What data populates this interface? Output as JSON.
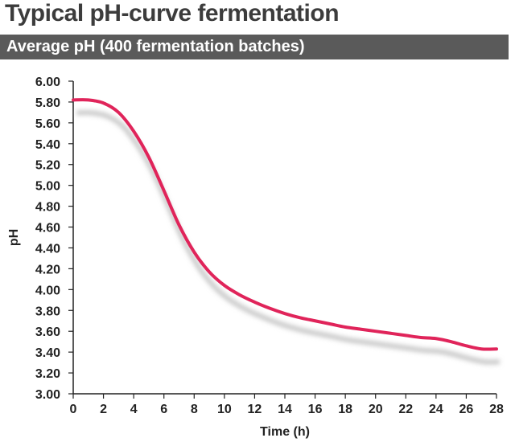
{
  "header": {
    "title": "Typical pH-curve fermentation",
    "subtitle": "Average pH (400 fermentation batches)"
  },
  "colors": {
    "line": "#e0245a",
    "shadow": "#c8c8c8",
    "axis": "#222222",
    "subtitle_bar": "#5a5a5a"
  },
  "chart_data": {
    "type": "line",
    "title": "Typical pH-curve fermentation",
    "subtitle": "Average pH (400 fermentation batches)",
    "xlabel": "Time (h)",
    "ylabel": "pH",
    "xlim": [
      0,
      28
    ],
    "ylim": [
      3.0,
      6.0
    ],
    "x_ticks": [
      0,
      2,
      4,
      6,
      8,
      10,
      12,
      14,
      16,
      18,
      20,
      22,
      24,
      26,
      28
    ],
    "x_tick_labels": [
      "0",
      "2",
      "4",
      "6",
      "8",
      "10",
      "12",
      "14",
      "16",
      "18",
      "20",
      "22",
      "24",
      "26",
      "28"
    ],
    "y_ticks": [
      3.0,
      3.2,
      3.4,
      3.6,
      3.8,
      4.0,
      4.2,
      4.4,
      4.6,
      4.8,
      5.0,
      5.2,
      5.4,
      5.6,
      5.8,
      6.0
    ],
    "y_tick_labels": [
      "3.00",
      "3.20",
      "3.40",
      "3.60",
      "3.80",
      "4.00",
      "4.20",
      "4.40",
      "4.60",
      "4.80",
      "5.00",
      "5.20",
      "5.40",
      "5.60",
      "5.80",
      "6.00"
    ],
    "grid": false,
    "series": [
      {
        "x": [
          0,
          1,
          2,
          3,
          4,
          5,
          6,
          7,
          8,
          9,
          10,
          11,
          12,
          13,
          14,
          15,
          16,
          17,
          18,
          19,
          20,
          21,
          22,
          23,
          24,
          25,
          26,
          27,
          28
        ],
        "y": [
          5.82,
          5.82,
          5.79,
          5.7,
          5.52,
          5.27,
          4.95,
          4.62,
          4.36,
          4.17,
          4.04,
          3.95,
          3.88,
          3.82,
          3.77,
          3.73,
          3.7,
          3.67,
          3.64,
          3.62,
          3.6,
          3.58,
          3.56,
          3.54,
          3.53,
          3.5,
          3.46,
          3.43,
          3.43
        ]
      }
    ]
  }
}
